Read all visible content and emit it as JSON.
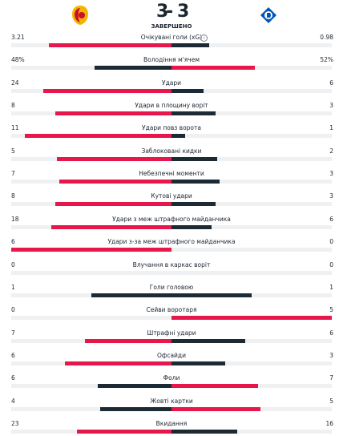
{
  "header": {
    "home_score": 3,
    "away_score": 3,
    "status": "ЗАВЕРШЕНО"
  },
  "rows": [
    {
      "label": "Очікувані голи (xG)",
      "home": 3.21,
      "away": 0.98
    },
    {
      "label": "Володіння м'ячем",
      "home": 48,
      "away": 52,
      "home_label": "48%",
      "away_label": "52%"
    },
    {
      "label": "Удари",
      "home": 24,
      "away": 6
    },
    {
      "label": "Удари в площину воріт",
      "home": 8,
      "away": 3
    },
    {
      "label": "Удари повз ворота",
      "home": 11,
      "away": 1
    },
    {
      "label": "Заблоковані кидки",
      "home": 5,
      "away": 2
    },
    {
      "label": "Небезпечні моменти",
      "home": 7,
      "away": 3
    },
    {
      "label": "Кутові удари",
      "home": 8,
      "away": 3
    },
    {
      "label": "Удари з меж штрафного майданчика",
      "home": 18,
      "away": 6
    },
    {
      "label": "Удари з-за меж штрафного майданчика",
      "home": 6,
      "away": 0
    },
    {
      "label": "Влучання в каркас воріт",
      "home": 0,
      "away": 0
    },
    {
      "label": "Голи головою",
      "home": 1,
      "away": 1
    },
    {
      "label": "Сейви воротаря",
      "home": 0,
      "away": 5
    },
    {
      "label": "Штрафні удари",
      "home": 7,
      "away": 6
    },
    {
      "label": "Офсайди",
      "home": 6,
      "away": 3
    },
    {
      "label": "Фоли",
      "home": 6,
      "away": 7
    },
    {
      "label": "Жовті картки",
      "home": 4,
      "away": 5
    },
    {
      "label": "Вкидання",
      "home": 23,
      "away": 16
    }
  ]
}
